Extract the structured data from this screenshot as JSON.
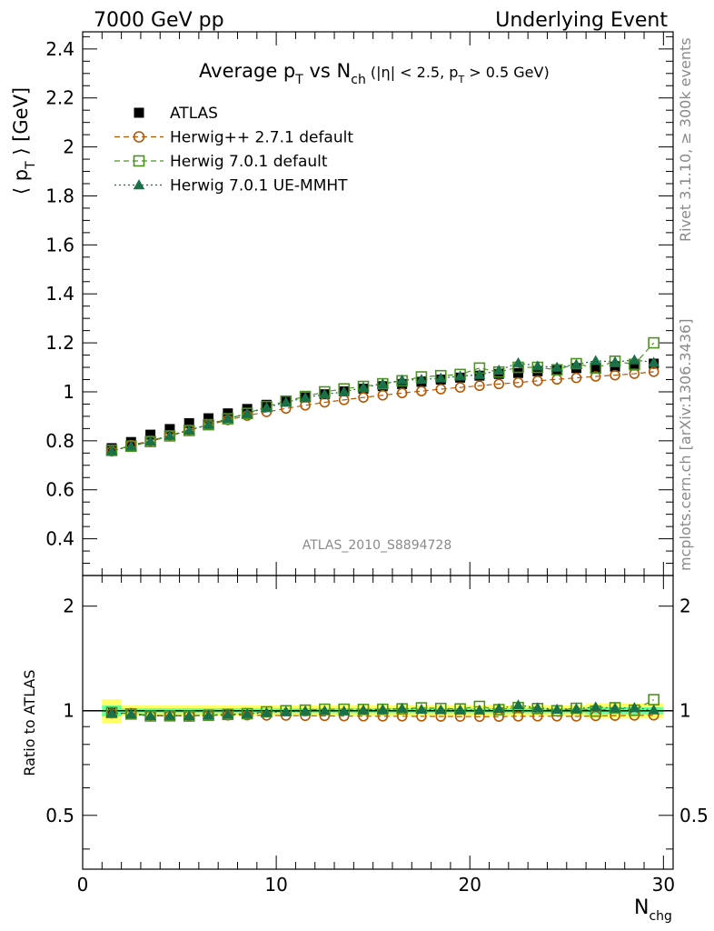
{
  "header": {
    "left": "7000 GeV pp",
    "right": "Underlying Event"
  },
  "side_labels": {
    "rivet": "Rivet 3.1.10, ≥ 300k events",
    "mcplots": "mcplots.cern.ch [arXiv:1306.3436]"
  },
  "watermark": "ATLAS_2010_S8894728",
  "chart_data": {
    "type": "scatter",
    "title": {
      "main": "Average p",
      "main_sub": "T",
      "mid": " vs N",
      "mid_sub": "ch",
      "cuts_pre": " (|η| < 2.5, p",
      "cuts_sub": "T",
      "cuts_post": " > 0.5 GeV)"
    },
    "ylabel": {
      "open": "⟨ p",
      "sub": "T",
      "close": " ⟩ [GeV]"
    },
    "xlabel": {
      "main": "N",
      "sub": "chg"
    },
    "ratio_ylabel": "Ratio to ATLAS",
    "xlim": [
      0,
      30.5
    ],
    "ylim": [
      0.25,
      2.47
    ],
    "ratio_ylim": [
      0.35,
      2.45
    ],
    "x_ticks": [
      "0",
      "10",
      "20",
      "30"
    ],
    "y_ticks": [
      "0.4",
      "0.6",
      "0.8",
      "1",
      "1.2",
      "1.4",
      "1.6",
      "1.8",
      "2",
      "2.2",
      "2.4"
    ],
    "ratio_ticks": [
      "0.5",
      "1",
      "2"
    ],
    "x": [
      1.5,
      2.5,
      3.5,
      4.5,
      5.5,
      6.5,
      7.5,
      8.5,
      9.5,
      10.5,
      11.5,
      12.5,
      13.5,
      14.5,
      15.5,
      16.5,
      17.5,
      18.5,
      19.5,
      20.5,
      21.5,
      22.5,
      23.5,
      24.5,
      25.5,
      26.5,
      27.5,
      28.5,
      29.5
    ],
    "series": [
      {
        "name": "ATLAS",
        "marker": "filled-square",
        "color": "#000000",
        "values": [
          0.77,
          0.795,
          0.825,
          0.848,
          0.872,
          0.892,
          0.912,
          0.93,
          0.947,
          0.962,
          0.977,
          0.99,
          1.002,
          1.013,
          1.023,
          1.032,
          1.041,
          1.05,
          1.058,
          1.066,
          1.073,
          1.077,
          1.084,
          1.09,
          1.097,
          1.1,
          1.103,
          1.108,
          1.115
        ]
      },
      {
        "name": "Herwig++ 2.7.1 default",
        "marker": "open-circle",
        "line": "dashed",
        "color": "#b35806",
        "values": [
          0.757,
          0.782,
          0.8,
          0.822,
          0.845,
          0.865,
          0.885,
          0.903,
          0.918,
          0.932,
          0.945,
          0.957,
          0.967,
          0.977,
          0.986,
          0.995,
          1.003,
          1.011,
          1.018,
          1.025,
          1.032,
          1.038,
          1.045,
          1.051,
          1.057,
          1.063,
          1.068,
          1.074,
          1.082
        ]
      },
      {
        "name": "Herwig 7.0.1 default",
        "marker": "open-square",
        "line": "dashed",
        "color": "#4d9221",
        "values": [
          0.761,
          0.778,
          0.797,
          0.82,
          0.842,
          0.866,
          0.89,
          0.912,
          0.94,
          0.962,
          0.981,
          1.0,
          1.012,
          1.022,
          1.033,
          1.045,
          1.061,
          1.066,
          1.071,
          1.097,
          1.081,
          1.1,
          1.1,
          1.09,
          1.115,
          1.097,
          1.125,
          1.112,
          1.2
        ]
      },
      {
        "name": "Herwig 7.0.1 UE-MMHT",
        "marker": "filled-triangle",
        "line": "dotted",
        "color": "#1a7048",
        "values": [
          0.759,
          0.778,
          0.798,
          0.821,
          0.843,
          0.867,
          0.891,
          0.911,
          0.936,
          0.957,
          0.976,
          0.99,
          1.0,
          1.018,
          1.032,
          1.048,
          1.05,
          1.056,
          1.064,
          1.07,
          1.088,
          1.118,
          1.105,
          1.1,
          1.112,
          1.127,
          1.122,
          1.13,
          1.12
        ]
      }
    ],
    "ratio_band_colors": {
      "inner": "#66ff99",
      "outer": "#ffff66"
    },
    "legend_position": "top-left"
  }
}
